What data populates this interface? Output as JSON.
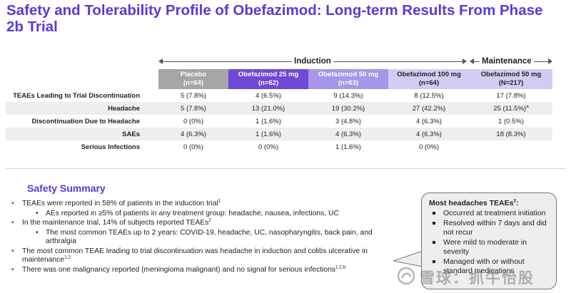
{
  "title": "Safety and Tolerability Profile of Obefazimod: Long-term Results From Phase 2b Trial",
  "spans": {
    "induction": "Induction",
    "maintenance": "Maintenance"
  },
  "table": {
    "columns": [
      {
        "line1": "Placebo",
        "line2": "(n=64)"
      },
      {
        "line1": "Obefazimod 25 mg",
        "line2": "(n=62)"
      },
      {
        "line1": "Obefazimod 50 mg",
        "line2": "(n=63)"
      },
      {
        "line1": "Obefazimod 100 mg",
        "line2": "(n=64)"
      },
      {
        "line1": "Obefazimod 50 mg",
        "line2": "(N=217)"
      }
    ],
    "rows": [
      {
        "label": "TEAEs Leading to Trial Discontinuation",
        "cells": [
          "5 (7.8%)",
          "4 (6.5%)",
          "9 (14.3%)",
          "8 (12.5%)",
          "17 (7.8%)"
        ]
      },
      {
        "label": "Headache",
        "cells": [
          "5 (7.8%)",
          "13 (21.0%)",
          "19 (30.2%)",
          "27 (42.2%)",
          "25 (11.5%)"
        ],
        "last_sup": "a"
      },
      {
        "label": "Discontinuation Due to Headache",
        "cells": [
          "0 (0%)",
          "1 (1.6%)",
          "3 (4.8%)",
          "4 (6.3%)",
          "1 (0.5%)"
        ]
      },
      {
        "label": "SAEs",
        "cells": [
          "4 (6.3%)",
          "1 (1.6%)",
          "4 (6.3%)",
          "4 (6.3%)",
          "18 (8.3%)"
        ]
      },
      {
        "label": "Serious Infections",
        "cells": [
          "0 (0%)",
          "0 (0%)",
          "1 (1.6%)",
          "0 (0%)",
          ""
        ]
      }
    ]
  },
  "summary": {
    "heading": "Safety Summary",
    "b1": "TEAEs were reported in 58% of patients in the induction trial",
    "b1_sup": "1",
    "b1a": "AEs reported in ≥5% of patients in any treatment group: headache, nausea, infections, UC",
    "b2": "In the maintenance trial, 14% of subjects reported TEAEs",
    "b2_sup": "2",
    "b2a": "The most common TEAEs up to 2 years: COVID-19, headache, UC, nasopharyngitis, back pain, and arthralgia",
    "b3": "The most common TEAE leading to trial discontinuation was headache in induction and colitis ulcerative in maintenance",
    "b3_sup": "1,2",
    "b4": "There was one malignancy reported (meningioma malignant) and no signal for serious infections",
    "b4_sup": "1,2,b"
  },
  "callout": {
    "title": "Most headaches TEAEs",
    "title_sup": "2",
    "title_suffix": ":",
    "items": [
      "Occurred at treatment initiation",
      "Resolved within 7 days and did not recur",
      "Were mild to moderate in severity",
      "Managed with or without standard medications"
    ]
  },
  "watermark": "雪球：抓牛怡股",
  "colors": {
    "title": "#5b38d9",
    "placebo_header": "#a6a6a6",
    "dose25_header": "#6f48d8",
    "dose50_header": "#a796e8",
    "dose100_header": "#d2cbf3",
    "maint_header": "#d2cbf3",
    "shade_row": "#eeeeee"
  }
}
